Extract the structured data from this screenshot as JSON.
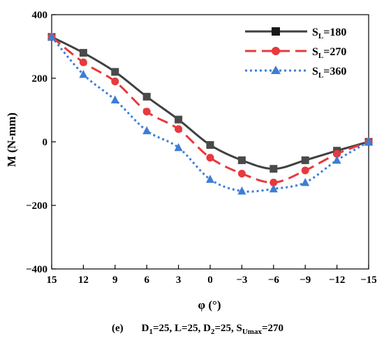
{
  "chart_data": {
    "type": "line",
    "xlabel": "φ (°)",
    "ylabel": "M  (N-mm)",
    "x": [
      15,
      12,
      9,
      6,
      3,
      0,
      -3,
      -6,
      -9,
      -12,
      -15
    ],
    "x_tick_labels": [
      "15",
      "12",
      "9",
      "6",
      "3",
      "0",
      "−3",
      "−6",
      "−9",
      "−12",
      "−15"
    ],
    "x_reversed": true,
    "ylim": [
      -400,
      400
    ],
    "y_ticks": [
      400,
      200,
      0,
      -200,
      -400
    ],
    "y_tick_labels": [
      "400",
      "200",
      "0",
      "−200",
      "−400"
    ],
    "grid": false,
    "legend_position": "top-right",
    "series": [
      {
        "name_main": "S",
        "name_sub": "L",
        "name_value": "=180",
        "color": "#404040",
        "line_style": "solid",
        "marker": "square",
        "values": [
          330,
          280,
          220,
          142,
          70,
          -10,
          -58,
          -85,
          -58,
          -28,
          0
        ]
      },
      {
        "name_main": "S",
        "name_sub": "L",
        "name_value": "=270",
        "color": "#e8393c",
        "line_style": "dashed",
        "marker": "circle",
        "values": [
          330,
          250,
          190,
          95,
          40,
          -50,
          -100,
          -128,
          -90,
          -38,
          0
        ]
      },
      {
        "name_main": "S",
        "name_sub": "L",
        "name_value": "=360",
        "color": "#3d7dd6",
        "line_style": "dotted",
        "marker": "triangle",
        "values": [
          330,
          212,
          132,
          35,
          -18,
          -118,
          -155,
          -148,
          -128,
          -58,
          0
        ]
      }
    ]
  },
  "caption": {
    "label": "(e)",
    "d1_main": "D",
    "d1_sub": "1",
    "d1_value": "=25, L=25, ",
    "d2_main": "D",
    "d2_sub": "2",
    "d2_value": "=25, ",
    "s_main": "S",
    "s_sub": "Umax",
    "s_value": "=270"
  }
}
